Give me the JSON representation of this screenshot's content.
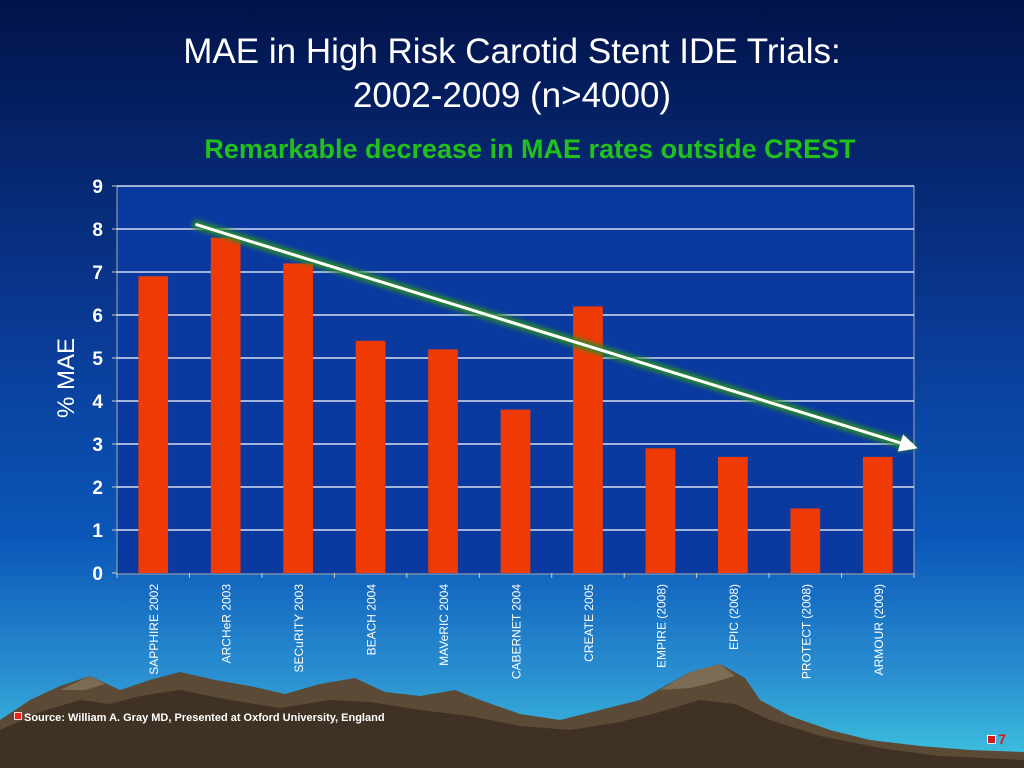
{
  "slide": {
    "title_line1": "MAE in High Risk Carotid Stent IDE Trials:",
    "title_line2": "2002-2009 (n>4000)",
    "source": "Source: William  A. Gray  MD, Presented at Oxford University, England",
    "page_number": "7"
  },
  "colors": {
    "bar": "#f03a05",
    "subtitle": "#22c01c",
    "trend_arrow": "#ffffff",
    "trend_glow": "#2a8a2a",
    "plot_background": "#0a3aa0",
    "gridline": "#ffffff"
  },
  "chart_data": {
    "type": "bar",
    "title": "Remarkable decrease in MAE rates outside CREST",
    "xlabel": "",
    "ylabel": "% MAE",
    "ylim": [
      0,
      9
    ],
    "yticks": [
      0,
      1,
      2,
      3,
      4,
      5,
      6,
      7,
      8,
      9
    ],
    "grid": true,
    "legend": "none",
    "categories": [
      "SAPPHIRE 2002",
      "ARCHeR 2003",
      "SECuRITY 2003",
      "BEACH 2004",
      "MAVeRIC 2004",
      "CABERNET 2004",
      "CREATE 2005",
      "EMPIRE (2008)",
      "EPIC (2008)",
      "PROTECT (2008)",
      "ARMOUR (2009)"
    ],
    "values": [
      6.9,
      7.8,
      7.2,
      5.4,
      5.2,
      3.8,
      6.2,
      2.9,
      2.7,
      1.5,
      2.7
    ],
    "annotations": [
      {
        "type": "trend-arrow",
        "from": {
          "x": "SAPPHIRE 2002",
          "y": 8.1
        },
        "to": {
          "x": "ARMOUR (2009)",
          "y": 2.9
        }
      }
    ]
  }
}
